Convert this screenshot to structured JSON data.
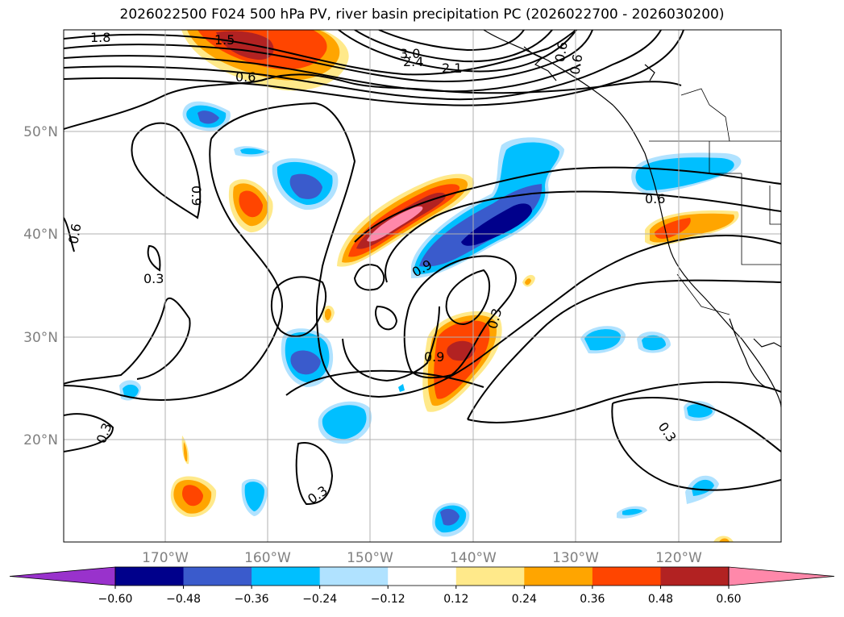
{
  "title": "2026022500 F024 500 hPa PV, river basin precipitation PC (2026022700 - 2026030200)",
  "lat_labels": [
    "50°N",
    "40°N",
    "30°N",
    "20°N"
  ],
  "lon_labels": [
    "170°W",
    "160°W",
    "150°W",
    "140°W",
    "130°W",
    "120°W"
  ],
  "contour_labels": [
    "1.8",
    "1.5",
    "3.0",
    "2.4",
    "2.1",
    "0.6",
    "0.6",
    "0.9",
    "0.6",
    "0.9",
    "0.9",
    "0.3",
    "0.3",
    "0.3",
    "0.3",
    "0.3",
    "0.6",
    "0.6"
  ],
  "colorbar": {
    "colors": [
      "#9932cc",
      "#00008b",
      "#3a5bcc",
      "#00bfff",
      "#b0e2ff",
      "#ffffff",
      "#ffe98a",
      "#ffa500",
      "#ff4500",
      "#b22222",
      "#ff88aa"
    ],
    "tick_labels": [
      "−0.60",
      "−0.48",
      "−0.36",
      "−0.24",
      "−0.12",
      "0.12",
      "0.24",
      "0.36",
      "0.48",
      "0.60"
    ]
  },
  "colors": {
    "grid": "#b0b0b0",
    "contour": "#000000",
    "coast": "#000000",
    "axis_label": "#808080"
  }
}
